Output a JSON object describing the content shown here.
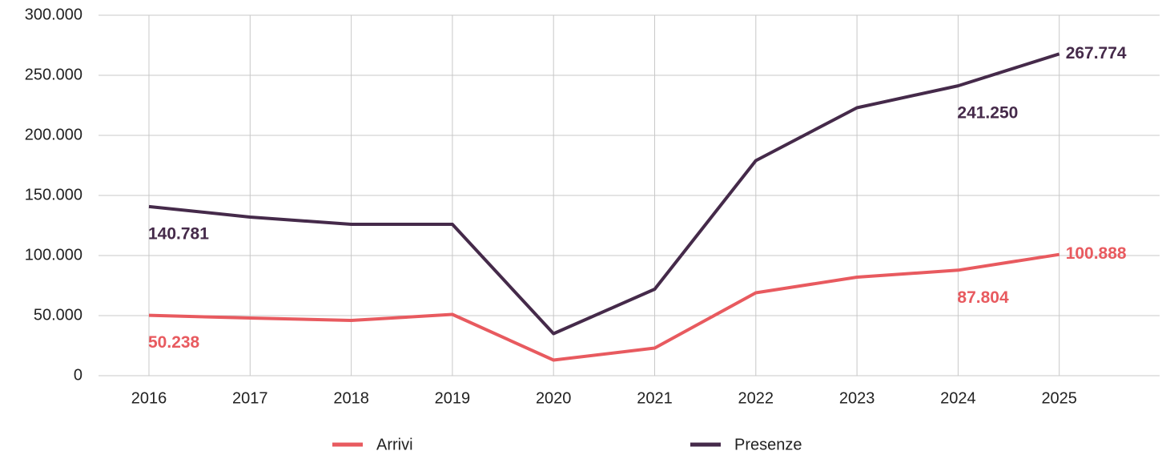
{
  "chart_data": {
    "type": "line",
    "categories": [
      "2016",
      "2017",
      "2018",
      "2019",
      "2020",
      "2021",
      "2022",
      "2023",
      "2024",
      "2025"
    ],
    "series": [
      {
        "name": "Arrivi",
        "color": "#e85a5f",
        "values": [
          50238,
          48000,
          46000,
          51000,
          13000,
          23000,
          69000,
          82000,
          87804,
          100888
        ],
        "value_labels": [
          "50.238",
          null,
          null,
          null,
          null,
          null,
          null,
          null,
          "87.804",
          "100.888"
        ]
      },
      {
        "name": "Presenze",
        "color": "#452a4a",
        "values": [
          140781,
          132000,
          126000,
          126000,
          35000,
          72000,
          179000,
          223000,
          241250,
          267774
        ],
        "value_labels": [
          "140.781",
          null,
          null,
          null,
          null,
          null,
          null,
          null,
          "241.250",
          "267.774"
        ]
      }
    ],
    "ylim": [
      0,
      300000
    ],
    "yticks": [
      0,
      {
        "value": 50000,
        "label": "50.000"
      },
      {
        "value": 100000,
        "label": "100.000"
      },
      {
        "value": 150000,
        "label": "150.000"
      },
      {
        "value": 200000,
        "label": "200.000"
      },
      {
        "value": 250000,
        "label": "250.000"
      },
      {
        "value": 300000,
        "label": "300.000"
      }
    ],
    "grid": true,
    "legend": "bottom"
  }
}
